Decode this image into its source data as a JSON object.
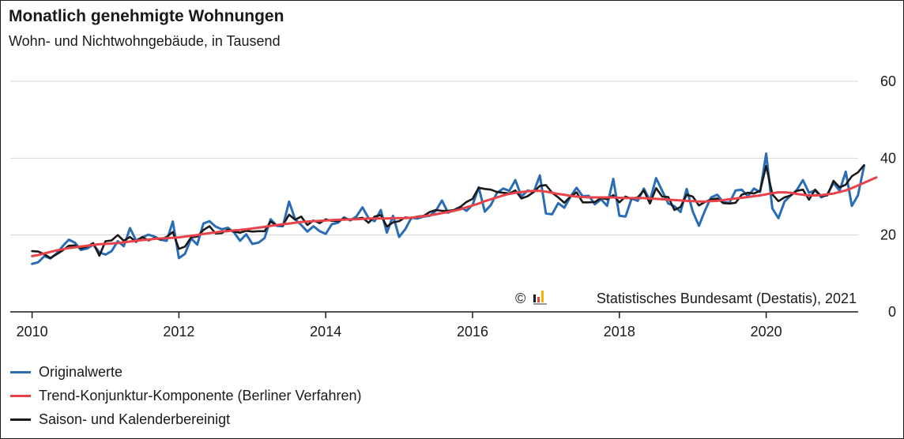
{
  "colors": {
    "original": "#2a6db5",
    "trend": "#e8424b",
    "adjusted": "#1a1a1a",
    "grid": "#d4d4d4"
  },
  "chart_data": {
    "type": "line",
    "title": "Monatlich genehmigte Wohnungen",
    "subtitle": "Wohn- und Nichtwohngebäude, in Tausend",
    "xlabel": "",
    "ylabel": "",
    "x_start": "2010-01",
    "x_end": "2021-03",
    "x_ticks": [
      "2010",
      "2012",
      "2014",
      "2016",
      "2018",
      "2020"
    ],
    "y_ticks": [
      "0",
      "20",
      "40",
      "60"
    ],
    "ylim": [
      0,
      60
    ],
    "grid": true,
    "legend_position": "bottom-left",
    "copyright": "© Statistisches Bundesamt (Destatis), 2021",
    "series": [
      {
        "name": "Originalwerte",
        "values": [
          12.5,
          12.9,
          14.5,
          13.9,
          15.2,
          17.1,
          18.8,
          18.0,
          16.1,
          16.5,
          17.5,
          15.5,
          14.9,
          15.8,
          18.4,
          17.1,
          21.8,
          18.6,
          19.4,
          20.1,
          19.6,
          18.8,
          18.5,
          23.5,
          14.0,
          15.1,
          19.1,
          17.5,
          23.0,
          23.6,
          22.2,
          21.5,
          21.9,
          20.7,
          18.5,
          20.2,
          17.7,
          18.0,
          19.2,
          24.1,
          22.4,
          22.3,
          28.7,
          24.1,
          22.6,
          20.9,
          22.3,
          21.0,
          20.3,
          22.8,
          23.2,
          24.6,
          23.8,
          24.8,
          27.2,
          24.4,
          23.6,
          26.5,
          20.6,
          25.0,
          19.5,
          21.5,
          24.5,
          24.3,
          24.8,
          25.0,
          26.3,
          29.0,
          25.8,
          26.5,
          27.3,
          26.3,
          27.8,
          32.4,
          26.1,
          27.8,
          31.0,
          32.1,
          31.5,
          34.3,
          30.0,
          31.6,
          31.2,
          35.5,
          25.6,
          25.4,
          28.3,
          27.1,
          30.0,
          32.3,
          30.1,
          30.2,
          28.0,
          29.3,
          27.6,
          34.6,
          25.0,
          24.8,
          29.5,
          28.9,
          32.1,
          29.0,
          34.8,
          31.5,
          28.2,
          27.5,
          26.0,
          32.0,
          26.1,
          22.4,
          26.4,
          29.8,
          30.5,
          28.5,
          28.4,
          31.6,
          31.8,
          30.1,
          32.1,
          31.2,
          41.2,
          26.9,
          24.4,
          28.7,
          30.3,
          31.7,
          34.3,
          31.0,
          31.6,
          29.8,
          30.6,
          33.6,
          31.5,
          36.5,
          27.6,
          30.3,
          38.0
        ],
        "color": "original"
      },
      {
        "name": "Trend-Konjunktur-Komponente (Berliner Verfahren)",
        "values": [
          14.5,
          14.8,
          15.2,
          15.6,
          16.0,
          16.3,
          16.6,
          16.8,
          17.0,
          17.2,
          17.4,
          17.6,
          17.7,
          17.8,
          17.9,
          18.1,
          18.3,
          18.5,
          18.7,
          18.8,
          19.0,
          19.1,
          19.2,
          19.3,
          19.4,
          19.6,
          19.8,
          20.0,
          20.3,
          20.5,
          20.7,
          20.9,
          21.0,
          21.2,
          21.3,
          21.5,
          21.7,
          21.9,
          22.1,
          22.4,
          22.6,
          22.8,
          23.0,
          23.2,
          23.4,
          23.5,
          23.6,
          23.7,
          23.8,
          23.9,
          24.0,
          24.0,
          24.1,
          24.1,
          24.2,
          24.3,
          24.3,
          24.3,
          24.3,
          24.4,
          24.4,
          24.4,
          24.5,
          24.7,
          24.9,
          25.1,
          25.4,
          25.7,
          26.0,
          26.3,
          26.7,
          27.2,
          27.7,
          28.2,
          28.8,
          29.3,
          29.8,
          30.3,
          30.7,
          31.0,
          31.2,
          31.4,
          31.5,
          31.5,
          31.3,
          31.0,
          30.7,
          30.5,
          30.2,
          30.0,
          29.9,
          29.8,
          29.8,
          29.8,
          29.8,
          29.8,
          29.7,
          29.6,
          29.6,
          29.6,
          29.6,
          29.5,
          29.4,
          29.3,
          29.2,
          29.1,
          29.0,
          28.9,
          28.8,
          28.7,
          28.7,
          28.8,
          28.9,
          29.1,
          29.3,
          29.5,
          29.7,
          29.9,
          30.1,
          30.3,
          30.6,
          30.9,
          31.1,
          31.1,
          31.0,
          30.7,
          30.5,
          30.3,
          30.3,
          30.4,
          30.6,
          30.8,
          31.2,
          31.6,
          32.2,
          32.9,
          33.6,
          34.3,
          35.0
        ],
        "color": "trend"
      },
      {
        "name": "Saison- und Kalenderbereinigt",
        "values": [
          15.8,
          15.7,
          15.0,
          14.0,
          15.0,
          16.0,
          17.2,
          17.3,
          16.5,
          17.0,
          17.9,
          14.6,
          18.4,
          18.6,
          20.0,
          18.5,
          19.5,
          18.2,
          19.5,
          18.6,
          19.2,
          18.8,
          19.5,
          20.8,
          16.4,
          17.0,
          19.4,
          19.6,
          21.3,
          22.3,
          20.4,
          20.5,
          21.4,
          20.9,
          20.6,
          21.1,
          20.9,
          21.0,
          21.0,
          23.5,
          22.5,
          22.6,
          25.3,
          24.0,
          24.8,
          22.6,
          23.8,
          23.1,
          24.1,
          23.7,
          23.6,
          24.3,
          24.0,
          24.2,
          24.5,
          23.2,
          24.8,
          25.2,
          22.2,
          23.3,
          23.6,
          24.6,
          24.4,
          24.8,
          25.0,
          26.0,
          26.5,
          26.3,
          26.3,
          26.5,
          27.3,
          28.6,
          29.4,
          32.3,
          32.0,
          31.8,
          31.2,
          31.0,
          30.8,
          31.6,
          29.5,
          30.1,
          31.2,
          32.8,
          33.0,
          31.0,
          29.8,
          28.4,
          30.0,
          31.1,
          28.5,
          28.5,
          28.6,
          29.6,
          29.3,
          30.4,
          28.5,
          30.0,
          29.4,
          29.8,
          31.6,
          28.2,
          32.2,
          30.0,
          29.9,
          26.5,
          27.3,
          30.5,
          30.0,
          27.7,
          28.6,
          29.3,
          29.5,
          28.3,
          28.2,
          28.4,
          30.5,
          31.0,
          30.8,
          31.5,
          38.0,
          30.6,
          28.8,
          29.8,
          30.3,
          31.5,
          31.8,
          29.2,
          31.8,
          30.1,
          30.3,
          34.1,
          32.4,
          33.1,
          35.3,
          36.3,
          38.2
        ],
        "color": "adjusted"
      }
    ]
  }
}
